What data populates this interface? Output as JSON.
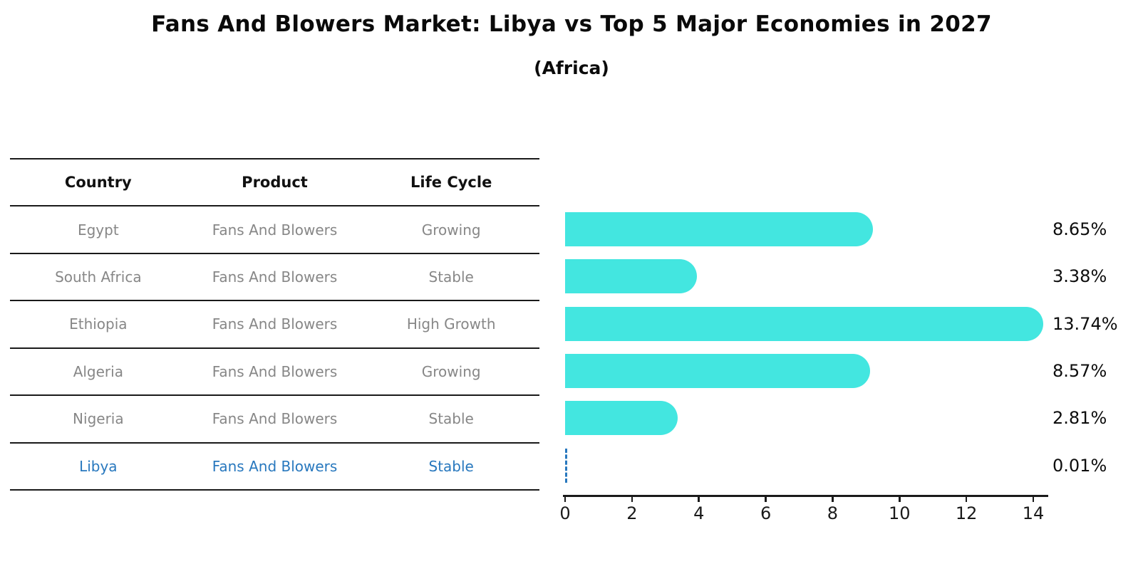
{
  "title": "Fans And Blowers Market: Libya vs Top 5 Major Economies in 2027",
  "subtitle": "(Africa)",
  "colors": {
    "bar": "#43e6e0",
    "highlight_text": "#2878be",
    "row_text": "#878787",
    "header_text": "#111111",
    "value_text": "#0d0d0d",
    "axis_line": "#1a1a1a"
  },
  "table": {
    "headers": [
      "Country",
      "Product",
      "Life Cycle"
    ],
    "rows": [
      {
        "country": "Egypt",
        "product": "Fans And Blowers",
        "life_cycle": "Growing",
        "highlighted": false
      },
      {
        "country": "South Africa",
        "product": "Fans And Blowers",
        "life_cycle": "Stable",
        "highlighted": false
      },
      {
        "country": "Ethiopia",
        "product": "Fans And Blowers",
        "life_cycle": "High Growth",
        "highlighted": false
      },
      {
        "country": "Algeria",
        "product": "Fans And Blowers",
        "life_cycle": "Growing",
        "highlighted": false
      },
      {
        "country": "Nigeria",
        "product": "Fans And Blowers",
        "life_cycle": "Stable",
        "highlighted": false
      },
      {
        "country": "Libya",
        "product": "Fans And Blowers",
        "life_cycle": "Stable",
        "highlighted": true
      }
    ]
  },
  "chart_data": {
    "type": "bar",
    "orientation": "horizontal",
    "title": "Fans And Blowers Market: Libya vs Top 5 Major Economies in 2027",
    "subtitle": "(Africa)",
    "categories": [
      "Egypt",
      "South Africa",
      "Ethiopia",
      "Algeria",
      "Nigeria",
      "Libya"
    ],
    "values": [
      8.65,
      3.38,
      13.74,
      8.57,
      2.81,
      0.01
    ],
    "value_labels": [
      "8.65%",
      "3.38%",
      "13.74%",
      "8.57%",
      "2.81%",
      "0.01%"
    ],
    "xlabel": "",
    "ylabel": "",
    "xlim": [
      0,
      14.45
    ],
    "xticks": [
      0,
      2,
      4,
      6,
      8,
      10,
      12,
      14
    ],
    "grid": false,
    "legend": false,
    "bar_color": "#43e6e0",
    "highlight_index": 5,
    "highlight_style": "dashed-blue-outline"
  }
}
